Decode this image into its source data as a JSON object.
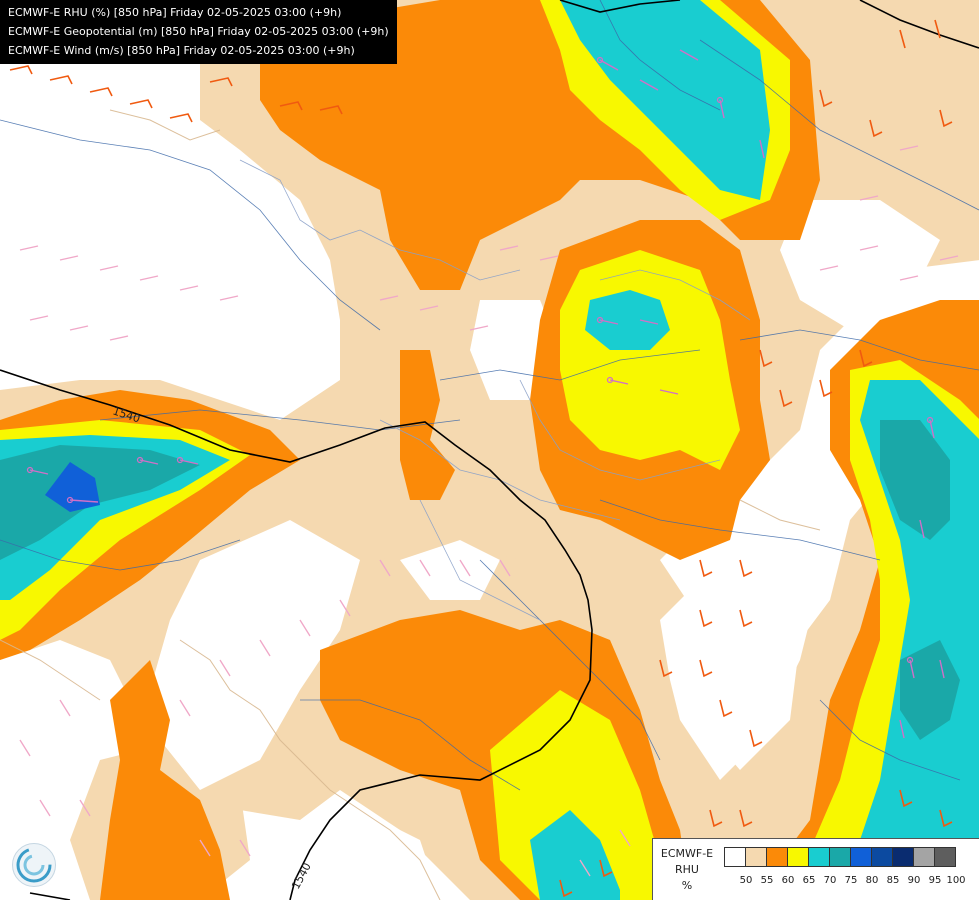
{
  "titles": {
    "line1": "ECMWF-E RHU (%) [850 hPa] Friday 02-05-2025 03:00 (+9h)",
    "line2": "ECMWF-E Geopotential (m) [850 hPa] Friday 02-05-2025 03:00 (+9h)",
    "line3": "ECMWF-E Wind (m/s) [850 hPa] Friday 02-05-2025 03:00 (+9h)"
  },
  "contours": {
    "label_a": "1540",
    "label_b": "1540"
  },
  "legend": {
    "model": "ECMWF-E",
    "variable": "RHU",
    "unit": "%",
    "ticks": [
      "50",
      "55",
      "60",
      "65",
      "70",
      "75",
      "80",
      "85",
      "90",
      "95",
      "100"
    ],
    "colors": [
      "#ffffff",
      "#f5d9b0",
      "#fb8a08",
      "#f8f800",
      "#19cdd0",
      "#1aa8a8",
      "#1060d8",
      "#0c4aa0",
      "#0a2c70",
      "#a4a4a4",
      "#5e5e5e"
    ]
  },
  "logo": {
    "icon": "meteo-swirl-icon"
  }
}
